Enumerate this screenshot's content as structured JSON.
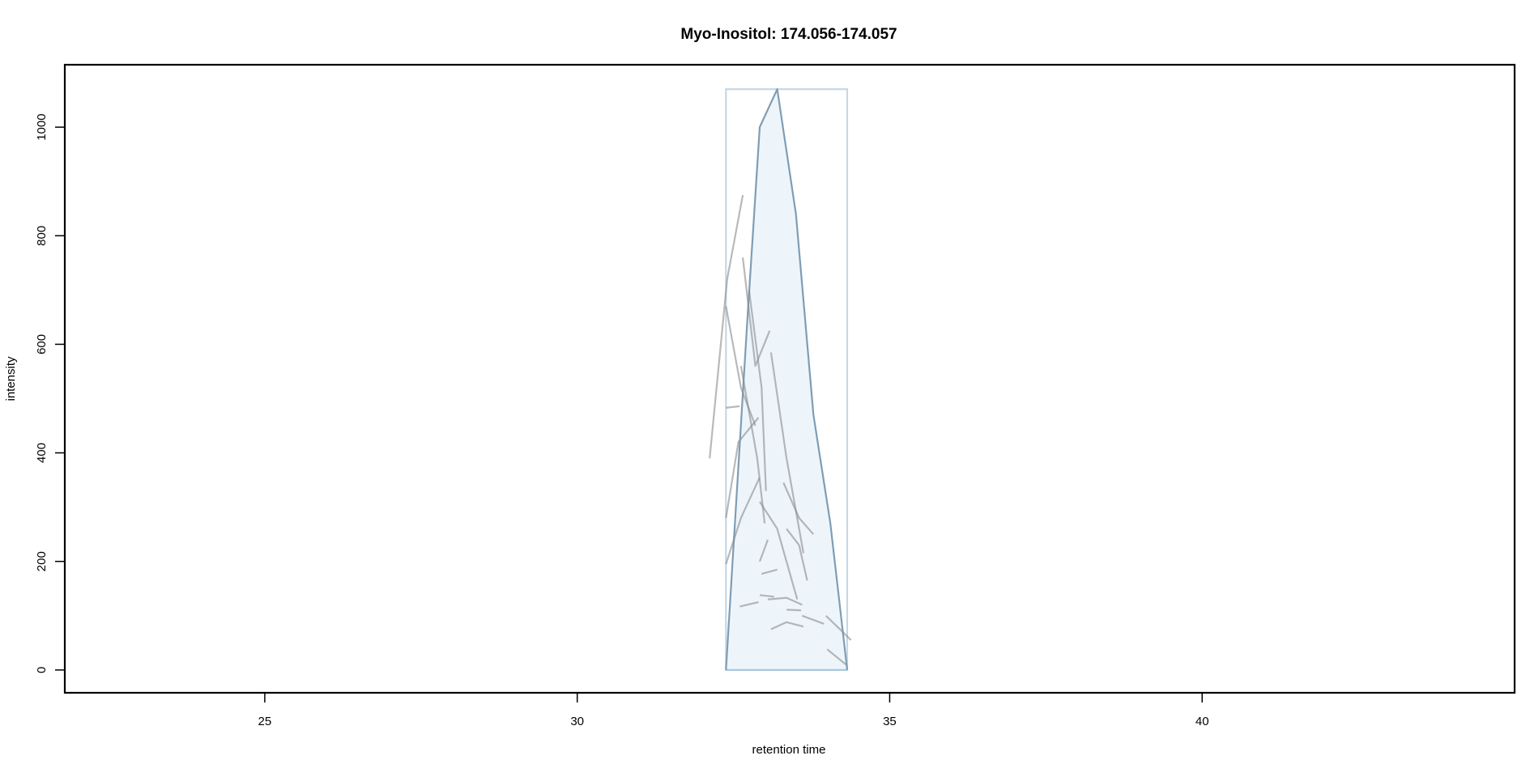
{
  "chart_data": {
    "type": "line",
    "title": "Myo-Inositol: 174.056-174.057",
    "xlabel": "retention time",
    "ylabel": "intensity",
    "xlim": [
      21.8,
      45.0
    ],
    "ylim": [
      -42,
      1115
    ],
    "x_ticks": [
      25,
      30,
      35,
      40
    ],
    "y_ticks": [
      0,
      200,
      400,
      600,
      800,
      1000
    ],
    "grid": false,
    "legend": "none",
    "colors": {
      "box_stroke": "#c4d8e6",
      "box_fill": "#eef5fa",
      "peak_line": "#7f9db5",
      "traces": "#8a8a8a",
      "axis": "#000000"
    },
    "box": {
      "x": [
        32.38,
        34.32
      ],
      "y": [
        0,
        1070
      ]
    },
    "peak_outline": {
      "x": [
        32.38,
        32.72,
        32.92,
        33.2,
        33.5,
        33.78,
        34.05,
        34.32
      ],
      "y": [
        0,
        640,
        1000,
        1070,
        840,
        470,
        270,
        0
      ]
    },
    "traces": [
      {
        "x": [
          32.12,
          32.4,
          32.65
        ],
        "y": [
          390,
          720,
          875
        ]
      },
      {
        "x": [
          32.38,
          32.62,
          32.85
        ],
        "y": [
          670,
          520,
          450
        ]
      },
      {
        "x": [
          32.38,
          32.6
        ],
        "y": [
          483,
          486
        ]
      },
      {
        "x": [
          32.65,
          32.85,
          33.08
        ],
        "y": [
          760,
          560,
          625
        ]
      },
      {
        "x": [
          32.38,
          32.58,
          32.9
        ],
        "y": [
          280,
          420,
          465
        ]
      },
      {
        "x": [
          32.62,
          32.88,
          33.0
        ],
        "y": [
          560,
          390,
          270
        ]
      },
      {
        "x": [
          32.38,
          32.62,
          32.92
        ],
        "y": [
          195,
          280,
          355
        ]
      },
      {
        "x": [
          32.75,
          32.95,
          33.02
        ],
        "y": [
          700,
          520,
          330
        ]
      },
      {
        "x": [
          33.1,
          33.35,
          33.62
        ],
        "y": [
          585,
          390,
          215
        ]
      },
      {
        "x": [
          32.92,
          33.2,
          33.52
        ],
        "y": [
          310,
          260,
          130
        ]
      },
      {
        "x": [
          33.3,
          33.55,
          33.78
        ],
        "y": [
          345,
          280,
          250
        ]
      },
      {
        "x": [
          33.35,
          33.55,
          33.68
        ],
        "y": [
          260,
          230,
          165
        ]
      },
      {
        "x": [
          32.92,
          33.05
        ],
        "y": [
          200,
          240
        ]
      },
      {
        "x": [
          32.95,
          33.2
        ],
        "y": [
          177,
          185
        ]
      },
      {
        "x": [
          32.92,
          33.15
        ],
        "y": [
          138,
          135
        ]
      },
      {
        "x": [
          32.6,
          32.9
        ],
        "y": [
          117,
          125
        ]
      },
      {
        "x": [
          33.05,
          33.35,
          33.6
        ],
        "y": [
          130,
          133,
          120
        ]
      },
      {
        "x": [
          33.1,
          33.35,
          33.62
        ],
        "y": [
          75,
          88,
          80
        ]
      },
      {
        "x": [
          33.35,
          33.58
        ],
        "y": [
          111,
          110
        ]
      },
      {
        "x": [
          33.6,
          33.95
        ],
        "y": [
          100,
          85
        ]
      },
      {
        "x": [
          33.98,
          34.25,
          34.38
        ],
        "y": [
          100,
          70,
          55
        ]
      },
      {
        "x": [
          34.0,
          34.3
        ],
        "y": [
          38,
          10
        ]
      }
    ]
  }
}
